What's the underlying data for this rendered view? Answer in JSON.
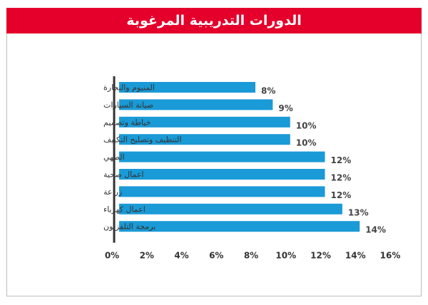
{
  "chart_data": {
    "type": "bar",
    "orientation": "horizontal",
    "title": "الدورات التدريبية المرغوبة",
    "categories": [
      "المنيوم والنجارة",
      "صيانة السيارات",
      "خياطة وتصميم",
      "التنظيف وتصليح التكييف",
      "الطهي",
      "اعمال صحية",
      "زراعة",
      "اعمال كهرباء",
      "برمجة التلفزيون"
    ],
    "values": [
      8,
      9,
      10,
      10,
      12,
      12,
      12,
      13,
      14
    ],
    "value_labels": [
      "8%",
      "9%",
      "10%",
      "10%",
      "12%",
      "12%",
      "12%",
      "13%",
      "14%"
    ],
    "x_ticks": [
      "0%",
      "2%",
      "4%",
      "6%",
      "8%",
      "10%",
      "12%",
      "14%",
      "16%"
    ],
    "xlim": [
      0,
      16
    ],
    "xlabel": "",
    "ylabel": "",
    "bar_color": "#1a9ad6",
    "title_bg_color": "#e4002b"
  }
}
